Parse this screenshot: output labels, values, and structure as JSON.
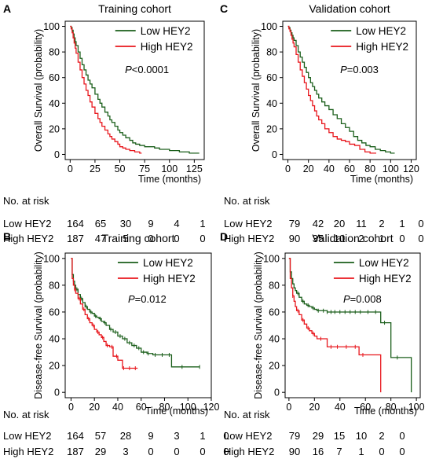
{
  "colors": {
    "low": "#1a5e1a",
    "high": "#e8161c",
    "axis": "#000000"
  },
  "risk_label": "No. at risk",
  "chart_data": [
    {
      "letter": "A",
      "type": "line",
      "title": "Training cohort",
      "ylabel": "Overall Survival (probability)",
      "xlabel": "Time (months)",
      "xlim": [
        -5,
        135
      ],
      "ylim": [
        -4,
        104
      ],
      "xticks": [
        0,
        25,
        50,
        75,
        100,
        125
      ],
      "yticks": [
        0,
        20,
        40,
        60,
        80,
        100
      ],
      "pvalue": {
        "label": "P",
        "value": "<0.0001"
      },
      "censor_marks": false,
      "legend_position": "top-right",
      "series": [
        {
          "name": "Low HEY2",
          "key": "low",
          "x": [
            0,
            1,
            2,
            3,
            4,
            5,
            6,
            8,
            10,
            12,
            14,
            16,
            18,
            20,
            22,
            25,
            28,
            30,
            32,
            35,
            38,
            40,
            42,
            45,
            48,
            50,
            53,
            56,
            60,
            63,
            66,
            70,
            75,
            80,
            85,
            90,
            95,
            100,
            105,
            110,
            115,
            120,
            125,
            130
          ],
          "y": [
            100,
            99,
            97,
            94,
            91,
            88,
            85,
            80,
            75,
            70,
            66,
            62,
            58,
            55,
            52,
            47,
            43,
            40,
            37,
            33,
            30,
            27,
            25,
            22,
            19,
            17,
            15,
            13,
            11,
            9,
            8,
            7,
            6,
            6,
            5,
            4,
            4,
            3,
            3,
            2,
            2,
            1,
            1,
            1
          ]
        },
        {
          "name": "High HEY2",
          "key": "high",
          "x": [
            0,
            1,
            2,
            3,
            4,
            5,
            6,
            8,
            10,
            12,
            14,
            16,
            18,
            20,
            22,
            25,
            28,
            30,
            32,
            35,
            38,
            40,
            42,
            45,
            48,
            50,
            53,
            56,
            60,
            65,
            70,
            72
          ],
          "y": [
            100,
            98,
            95,
            91,
            87,
            83,
            79,
            72,
            66,
            60,
            55,
            50,
            46,
            41,
            37,
            32,
            28,
            25,
            22,
            19,
            16,
            14,
            12,
            10,
            8,
            6,
            5,
            4,
            3,
            2,
            1,
            1
          ]
        }
      ],
      "risk_table": {
        "x": [
          0,
          25,
          50,
          75,
          100,
          125
        ],
        "rows": [
          {
            "label": "Low HEY2",
            "key": "low",
            "values": [
              "164",
              "65",
              "30",
              "9",
              "4",
              "1"
            ]
          },
          {
            "label": "High HEY2",
            "key": "high",
            "values": [
              "187",
              "47",
              "5",
              "0",
              "0",
              "0"
            ]
          }
        ]
      }
    },
    {
      "letter": "C",
      "type": "line",
      "title": "Validation cohort",
      "ylabel": "Overall Survival (probability)",
      "xlabel": "Time (months)",
      "xlim": [
        -5,
        125
      ],
      "ylim": [
        -4,
        104
      ],
      "xticks": [
        0,
        20,
        40,
        60,
        80,
        100,
        120
      ],
      "yticks": [
        0,
        20,
        40,
        60,
        80,
        100
      ],
      "pvalue": {
        "label": "P",
        "value": "=0.003"
      },
      "censor_marks": false,
      "legend_position": "top-right",
      "series": [
        {
          "name": "Low HEY2",
          "key": "low",
          "x": [
            0,
            1,
            2,
            3,
            4,
            5,
            6,
            8,
            10,
            12,
            14,
            16,
            18,
            20,
            22,
            24,
            26,
            28,
            30,
            33,
            36,
            40,
            44,
            48,
            52,
            56,
            60,
            64,
            68,
            72,
            76,
            80,
            85,
            90,
            95,
            100,
            104
          ],
          "y": [
            100,
            99,
            97,
            95,
            93,
            91,
            89,
            85,
            80,
            76,
            72,
            68,
            64,
            60,
            56,
            53,
            50,
            47,
            44,
            41,
            38,
            35,
            31,
            28,
            24,
            21,
            18,
            14,
            11,
            9,
            7,
            6,
            4,
            3,
            2,
            1,
            1
          ]
        },
        {
          "name": "High HEY2",
          "key": "high",
          "x": [
            0,
            1,
            2,
            3,
            4,
            5,
            6,
            8,
            10,
            12,
            14,
            16,
            18,
            20,
            22,
            24,
            26,
            28,
            30,
            33,
            36,
            40,
            44,
            48,
            52,
            56,
            60,
            65,
            70,
            75,
            80,
            86
          ],
          "y": [
            100,
            98,
            96,
            93,
            90,
            87,
            84,
            78,
            72,
            66,
            61,
            56,
            51,
            46,
            42,
            38,
            34,
            30,
            27,
            24,
            20,
            17,
            14,
            12,
            11,
            10,
            8,
            7,
            4,
            2,
            1,
            1
          ]
        }
      ],
      "risk_table": {
        "x": [
          0,
          20,
          40,
          60,
          80,
          100,
          120
        ],
        "rows": [
          {
            "label": "Low HEY2",
            "key": "low",
            "values": [
              "79",
              "42",
              "20",
              "11",
              "2",
              "1",
              "0"
            ]
          },
          {
            "label": "High HEY2",
            "key": "high",
            "values": [
              "90",
              "35",
              "10",
              "2",
              "1",
              "0",
              "0"
            ]
          }
        ]
      }
    },
    {
      "letter": "B",
      "type": "line",
      "title": "Training cohort",
      "ylabel": "Disease-free Survival (probability)",
      "xlabel": "Time (months)",
      "xlim": [
        -5,
        120
      ],
      "ylim": [
        -4,
        104
      ],
      "xticks": [
        0,
        20,
        40,
        60,
        80,
        100,
        120
      ],
      "yticks": [
        0,
        20,
        40,
        60,
        80,
        100
      ],
      "pvalue": {
        "label": "P",
        "value": "=0.012"
      },
      "censor_marks": true,
      "legend_position": "top-right",
      "series": [
        {
          "name": "Low HEY2",
          "key": "low",
          "x": [
            0,
            1,
            2,
            3,
            4,
            6,
            8,
            10,
            12,
            14,
            16,
            18,
            20,
            22,
            24,
            26,
            28,
            30,
            33,
            36,
            40,
            44,
            48,
            52,
            56,
            60,
            65,
            70,
            80,
            86,
            100,
            110
          ],
          "y": [
            100,
            88,
            83,
            80,
            77,
            73,
            70,
            67,
            64,
            62,
            60,
            59,
            57,
            56,
            55,
            53,
            52,
            50,
            47,
            45,
            42,
            40,
            37,
            35,
            33,
            30,
            29,
            28,
            28,
            19,
            19,
            19
          ],
          "censor_x": [
            5,
            9,
            13,
            17,
            21,
            25,
            29,
            34,
            38,
            42,
            46,
            50,
            54,
            58,
            62,
            66,
            72,
            78,
            84,
            95,
            110
          ]
        },
        {
          "name": "High HEY2",
          "key": "high",
          "x": [
            0,
            1,
            2,
            3,
            4,
            6,
            8,
            10,
            12,
            14,
            16,
            18,
            20,
            22,
            24,
            26,
            28,
            30,
            33,
            36,
            40,
            44,
            48,
            52,
            57
          ],
          "y": [
            100,
            85,
            80,
            77,
            74,
            70,
            66,
            62,
            58,
            55,
            52,
            50,
            47,
            45,
            43,
            41,
            38,
            35,
            34,
            27,
            24,
            18,
            18,
            18,
            18
          ],
          "censor_x": [
            3,
            7,
            11,
            15,
            19,
            23,
            27,
            31,
            35,
            39,
            45,
            50,
            55
          ]
        }
      ],
      "risk_table": {
        "x": [
          0,
          20,
          40,
          60,
          80,
          100,
          120
        ],
        "rows": [
          {
            "label": "Low HEY2",
            "key": "low",
            "values": [
              "164",
              "57",
              "28",
              "9",
              "3",
              "1",
              "0"
            ]
          },
          {
            "label": "High HEY2",
            "key": "high",
            "values": [
              "187",
              "29",
              "3",
              "0",
              "0",
              "0",
              "0"
            ]
          }
        ]
      }
    },
    {
      "letter": "D",
      "type": "line",
      "title": "Validation cohort",
      "ylabel": "Disease-free Survival (probability)",
      "xlabel": "Time (months)",
      "xlim": [
        -3,
        103
      ],
      "ylim": [
        -4,
        104
      ],
      "xticks": [
        0,
        20,
        40,
        60,
        80,
        100
      ],
      "yticks": [
        0,
        20,
        40,
        60,
        80,
        100
      ],
      "pvalue": {
        "label": "P",
        "value": "=0.008"
      },
      "censor_marks": true,
      "legend_position": "top-right",
      "series": [
        {
          "name": "Low HEY2",
          "key": "low",
          "x": [
            0,
            1,
            2,
            3,
            4,
            5,
            6,
            8,
            10,
            12,
            14,
            16,
            18,
            20,
            22,
            26,
            30,
            34,
            38,
            40,
            50,
            60,
            70,
            72,
            80,
            96
          ],
          "y": [
            100,
            90,
            85,
            81,
            78,
            76,
            74,
            71,
            68,
            66,
            65,
            64,
            63,
            62,
            61,
            61,
            60,
            60,
            60,
            60,
            60,
            60,
            60,
            52,
            26,
            0
          ],
          "censor_x": [
            7,
            11,
            15,
            19,
            23,
            27,
            30,
            33,
            36,
            40,
            44,
            48,
            52,
            56,
            62,
            68,
            75,
            85
          ]
        },
        {
          "name": "High HEY2",
          "key": "high",
          "x": [
            0,
            1,
            2,
            3,
            4,
            5,
            6,
            8,
            10,
            12,
            14,
            16,
            18,
            20,
            22,
            26,
            30,
            40,
            50,
            55,
            60,
            65,
            70,
            72
          ],
          "y": [
            100,
            85,
            78,
            72,
            68,
            64,
            61,
            58,
            54,
            51,
            48,
            46,
            44,
            42,
            40,
            40,
            34,
            34,
            34,
            28,
            28,
            28,
            28,
            0
          ],
          "censor_x": [
            3,
            7,
            11,
            15,
            19,
            25,
            33,
            38,
            45,
            52,
            58
          ]
        }
      ],
      "risk_table": {
        "x": [
          0,
          20,
          40,
          60,
          80,
          100
        ],
        "rows": [
          {
            "label": "Low HEY2",
            "key": "low",
            "values": [
              "79",
              "29",
              "15",
              "10",
              "2",
              "0"
            ]
          },
          {
            "label": "High HEY2",
            "key": "high",
            "values": [
              "90",
              "16",
              "7",
              "1",
              "0",
              "0"
            ]
          }
        ]
      }
    }
  ]
}
